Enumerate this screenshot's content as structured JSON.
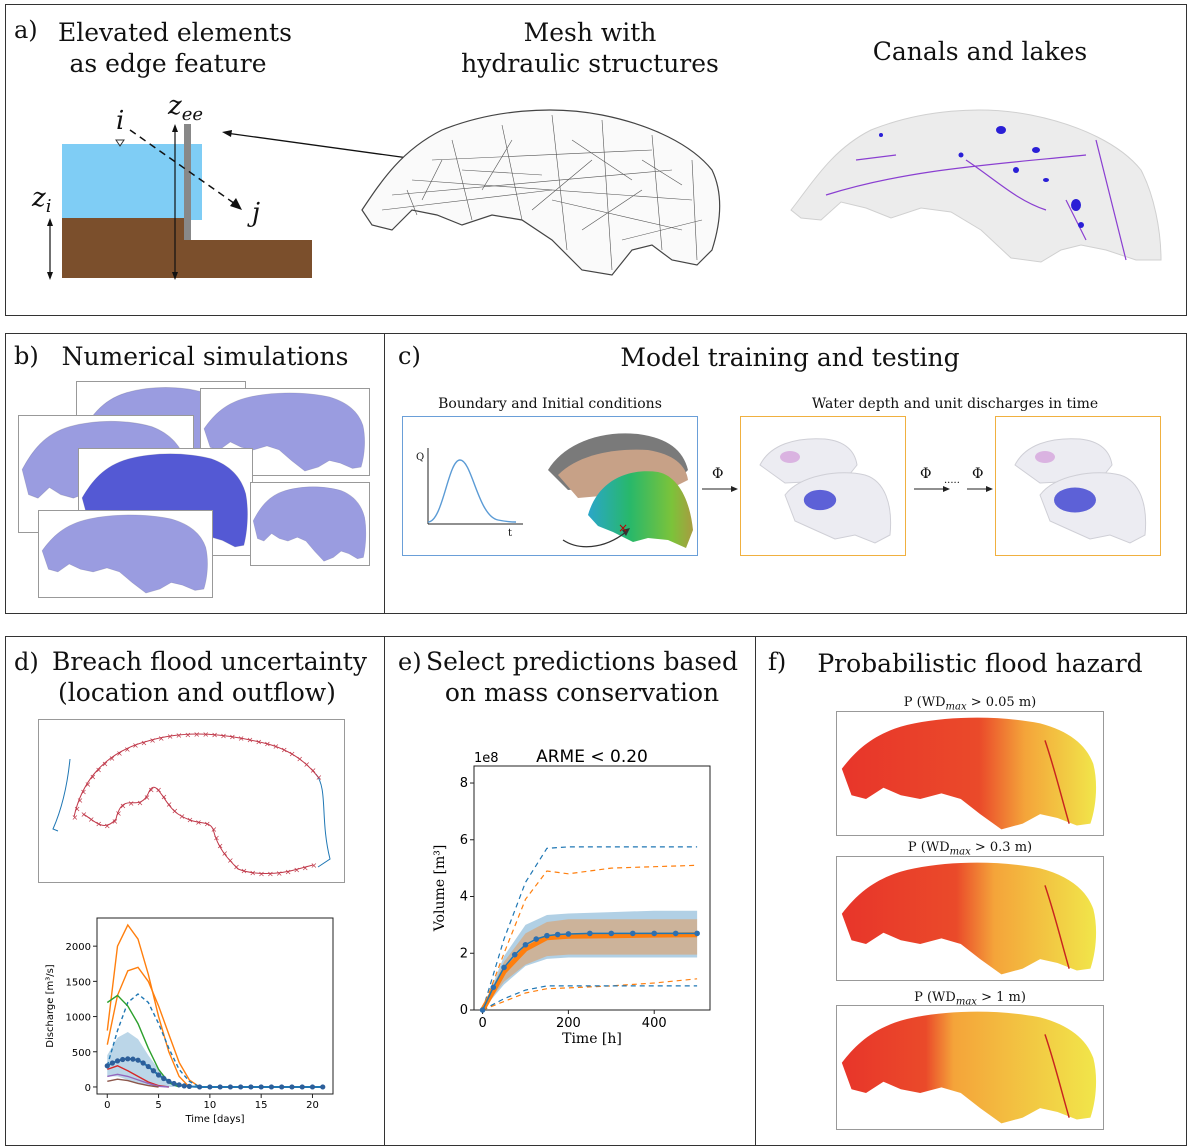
{
  "panel_a": {
    "letter": "a)",
    "title_left_1": "Elevated elements",
    "title_left_2": "as edge feature",
    "title_mid_1": "Mesh with",
    "title_mid_2": "hydraulic structures",
    "title_right": "Canals and lakes",
    "label_zee": "z",
    "label_zee_sub": "ee",
    "label_i": "i",
    "label_j": "j",
    "label_zi": "z",
    "label_zi_sub": "i",
    "colors": {
      "water": "#7fcdf5",
      "soil": "#7b4f2c",
      "wall": "#888888"
    }
  },
  "panel_b": {
    "letter": "b)",
    "title": "Numerical simulations"
  },
  "panel_c": {
    "letter": "c)",
    "title": "Model training and testing",
    "box1_title": "Boundary and Initial conditions",
    "box2_title": "Water depth and unit discharges in time",
    "axis_q": "Q",
    "axis_t": "t",
    "phi1": "Φ",
    "phi2": "Φ",
    "phi3": "Φ",
    "dots": "·····"
  },
  "panel_d": {
    "letter": "d)",
    "title_1": "Breach flood uncertainty",
    "title_2": "(location and outflow)"
  },
  "panel_e": {
    "letter": "e)",
    "title_1": "Select predictions based",
    "title_2": "on mass conservation"
  },
  "panel_f": {
    "letter": "f)",
    "title": "Probabilistic flood hazard",
    "map1_pre": "P (WD",
    "map1_sub": "max",
    "map1_post": " > 0.05 m)",
    "map2_pre": "P (WD",
    "map2_sub": "max",
    "map2_post": " > 0.3 m)",
    "map3_pre": "P (WD",
    "map3_sub": "max",
    "map3_post": " > 1 m)"
  },
  "chart_data": [
    {
      "type": "line",
      "title": "",
      "xlabel": "Time [days]",
      "ylabel": "Discharge [m³/s]",
      "xlim": [
        -1,
        22
      ],
      "ylim": [
        -100,
        2400
      ],
      "xticks": [
        0,
        5,
        10,
        15,
        20
      ],
      "yticks": [
        0,
        500,
        1000,
        1500,
        2000
      ],
      "series": [
        {
          "color": "#ff7f0e",
          "style": "solid",
          "x": [
            0,
            1,
            2,
            3,
            4,
            5,
            6,
            7,
            8
          ],
          "y": [
            800,
            2000,
            2300,
            2100,
            1600,
            1000,
            500,
            150,
            0
          ]
        },
        {
          "color": "#ff7f0e",
          "style": "solid",
          "x": [
            0,
            1,
            2,
            3,
            4,
            5,
            6,
            7,
            8,
            9
          ],
          "y": [
            600,
            1300,
            1650,
            1700,
            1500,
            1150,
            750,
            350,
            100,
            0
          ]
        },
        {
          "color": "#1f77b4",
          "style": "dashed",
          "x": [
            0,
            1,
            2,
            3,
            4,
            5,
            6,
            7,
            8,
            9
          ],
          "y": [
            300,
            800,
            1200,
            1320,
            1200,
            900,
            550,
            250,
            80,
            0
          ]
        },
        {
          "color": "#2ca02c",
          "style": "solid",
          "x": [
            0,
            1,
            2,
            3,
            4,
            5,
            6,
            7
          ],
          "y": [
            1200,
            1300,
            1150,
            900,
            550,
            250,
            60,
            0
          ]
        },
        {
          "color": "#d62728",
          "style": "solid",
          "x": [
            0,
            1,
            2,
            3,
            4,
            5,
            6
          ],
          "y": [
            250,
            300,
            230,
            150,
            70,
            20,
            0
          ]
        },
        {
          "color": "#9467bd",
          "style": "solid",
          "x": [
            0,
            1,
            2,
            3,
            4,
            5,
            6
          ],
          "y": [
            150,
            180,
            150,
            100,
            50,
            10,
            0
          ]
        },
        {
          "color": "#8c564b",
          "style": "solid",
          "x": [
            0,
            1,
            2,
            3,
            4,
            5
          ],
          "y": [
            80,
            110,
            90,
            50,
            20,
            0
          ]
        }
      ],
      "mean": {
        "color": "#1f77b4",
        "x": [
          0,
          0.5,
          1,
          1.5,
          2,
          2.5,
          3,
          3.5,
          4,
          4.5,
          5,
          5.5,
          6,
          6.5,
          7,
          7.5,
          8,
          9,
          10,
          11,
          12,
          13,
          14,
          15,
          16,
          17,
          18,
          19,
          20,
          21
        ],
        "y": [
          300,
          340,
          370,
          390,
          400,
          395,
          380,
          340,
          290,
          230,
          170,
          120,
          80,
          50,
          30,
          15,
          8,
          0,
          0,
          0,
          0,
          0,
          0,
          0,
          0,
          0,
          0,
          0,
          0,
          0
        ]
      },
      "band": {
        "color": "#1f77b4",
        "x": [
          0,
          1,
          2,
          3,
          4,
          5,
          6,
          7,
          8
        ],
        "upper": [
          450,
          700,
          780,
          680,
          450,
          250,
          100,
          30,
          0
        ],
        "lower": [
          150,
          150,
          100,
          50,
          20,
          5,
          0,
          0,
          0
        ]
      }
    },
    {
      "type": "line",
      "title": "ARME < 0.20",
      "xlabel": "Time [h]",
      "ylabel": "Volume [m³]",
      "y_multiplier": "1e8",
      "xlim": [
        -20,
        530
      ],
      "ylim": [
        0,
        8.6
      ],
      "xticks": [
        0,
        200,
        400
      ],
      "yticks": [
        0,
        2,
        4,
        6,
        8
      ],
      "series": [
        {
          "color": "#1f77b4",
          "style": "dashed",
          "x": [
            0,
            50,
            100,
            150,
            200,
            300,
            400,
            500
          ],
          "y": [
            0,
            2.5,
            4.5,
            5.7,
            5.75,
            5.75,
            5.75,
            5.75
          ]
        },
        {
          "color": "#ff7f0e",
          "style": "dashed",
          "x": [
            0,
            50,
            100,
            150,
            200,
            300,
            400,
            500
          ],
          "y": [
            0,
            2.0,
            3.9,
            4.9,
            4.8,
            5.0,
            5.05,
            5.1
          ]
        },
        {
          "color": "#ff7f0e",
          "style": "dashed",
          "x": [
            0,
            50,
            100,
            150,
            200,
            300,
            400,
            500
          ],
          "y": [
            0,
            0.3,
            0.6,
            0.75,
            0.78,
            0.85,
            0.95,
            1.1
          ]
        },
        {
          "color": "#1f77b4",
          "style": "dashed",
          "x": [
            0,
            50,
            100,
            150,
            200,
            300,
            400,
            500
          ],
          "y": [
            0,
            0.4,
            0.7,
            0.85,
            0.85,
            0.85,
            0.85,
            0.85
          ]
        }
      ],
      "band_blue": {
        "color": "#1f77b4",
        "x": [
          0,
          50,
          100,
          150,
          200,
          300,
          400,
          500
        ],
        "upper": [
          0,
          1.9,
          3.0,
          3.35,
          3.4,
          3.45,
          3.5,
          3.5
        ],
        "lower": [
          0,
          0.9,
          1.55,
          1.8,
          1.85,
          1.85,
          1.85,
          1.85
        ]
      },
      "band_orange": {
        "color": "#ff7f0e",
        "x": [
          0,
          50,
          100,
          150,
          200,
          300,
          400,
          500
        ],
        "upper": [
          0,
          1.7,
          2.7,
          3.1,
          3.2,
          3.2,
          3.2,
          3.2
        ],
        "lower": [
          0,
          1.0,
          1.6,
          1.9,
          1.95,
          1.95,
          1.95,
          1.95
        ]
      },
      "mean_orange": {
        "color": "#ff7f0e",
        "x": [
          0,
          50,
          100,
          150,
          200,
          300,
          400,
          500
        ],
        "y": [
          0,
          1.35,
          2.15,
          2.55,
          2.6,
          2.62,
          2.64,
          2.65
        ]
      },
      "mean_blue": {
        "color": "#1f77b4",
        "x": [
          0,
          25,
          50,
          75,
          100,
          125,
          150,
          175,
          200,
          250,
          300,
          350,
          400,
          450,
          500
        ],
        "y": [
          0,
          0.8,
          1.5,
          1.95,
          2.3,
          2.5,
          2.62,
          2.66,
          2.68,
          2.7,
          2.7,
          2.7,
          2.7,
          2.7,
          2.7
        ]
      }
    }
  ]
}
